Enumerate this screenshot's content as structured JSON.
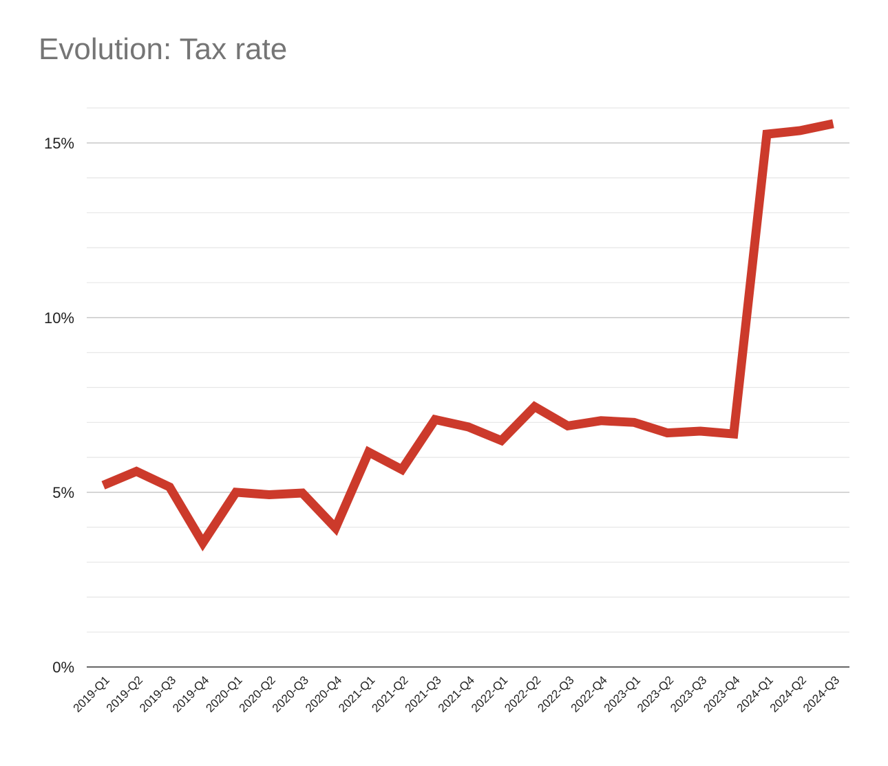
{
  "chart_data": {
    "type": "line",
    "title": "Evolution: Tax rate",
    "xlabel": "",
    "ylabel": "",
    "categories": [
      "2019-Q1",
      "2019-Q2",
      "2019-Q3",
      "2019-Q4",
      "2020-Q1",
      "2020-Q2",
      "2020-Q3",
      "2020-Q4",
      "2021-Q1",
      "2021-Q2",
      "2021-Q3",
      "2021-Q4",
      "2022-Q1",
      "2022-Q2",
      "2022-Q3",
      "2022-Q4",
      "2023-Q1",
      "2023-Q2",
      "2023-Q3",
      "2023-Q4",
      "2024-Q1",
      "2024-Q2",
      "2024-Q3"
    ],
    "series": [
      {
        "values": [
          5.2,
          5.6,
          5.15,
          3.55,
          5.0,
          4.93,
          4.98,
          3.98,
          6.15,
          5.65,
          7.08,
          6.87,
          6.48,
          7.45,
          6.9,
          7.05,
          7.0,
          6.7,
          6.75,
          6.67,
          15.25,
          15.35,
          15.55
        ],
        "color": "#cc3a2b"
      }
    ],
    "ylim": [
      0,
      16
    ],
    "yticks": [
      0,
      5,
      10,
      15
    ],
    "ytick_labels": [
      "0%",
      "5%",
      "10%",
      "15%"
    ],
    "minor_gridlines": true,
    "grid": true,
    "legend": "none"
  }
}
